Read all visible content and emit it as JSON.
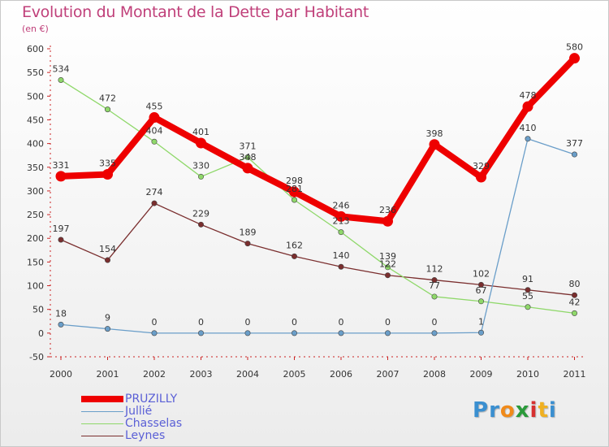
{
  "title": "Evolution du Montant de la Dette par Habitant",
  "subtitle": "(en €)",
  "chart_data": {
    "type": "line",
    "title": "Evolution du Montant de la Dette par Habitant",
    "subtitle": "(en €)",
    "xlabel": "",
    "ylabel": "",
    "categories": [
      "2000",
      "2001",
      "2002",
      "2003",
      "2004",
      "2005",
      "2006",
      "2007",
      "2008",
      "2009",
      "2010",
      "2011"
    ],
    "yticks": [
      -50,
      0,
      50,
      100,
      150,
      200,
      250,
      300,
      350,
      400,
      450,
      500,
      550,
      600
    ],
    "ylim": [
      -50,
      600
    ],
    "grid": false,
    "legend_position": "bottom-left",
    "series": [
      {
        "name": "PRUZILLY",
        "color": "#ee0000",
        "width": 8,
        "values": [
          331,
          335,
          455,
          401,
          348,
          298,
          246,
          236,
          398,
          329,
          478,
          580
        ]
      },
      {
        "name": "Jullié",
        "color": "#6a9ec9",
        "width": 1.3,
        "values": [
          18,
          9,
          0,
          0,
          0,
          0,
          0,
          0,
          0,
          1,
          410,
          377
        ]
      },
      {
        "name": "Chasselas",
        "color": "#8fd86a",
        "width": 1.3,
        "values": [
          534,
          472,
          404,
          330,
          371,
          281,
          213,
          139,
          77,
          67,
          55,
          42
        ]
      },
      {
        "name": "Leynes",
        "color": "#7a2e2e",
        "width": 1.3,
        "values": [
          197,
          154,
          274,
          229,
          189,
          162,
          140,
          122,
          112,
          102,
          91,
          80
        ]
      }
    ]
  },
  "legend": {
    "items": [
      {
        "label": "PRUZILLY",
        "color": "#ee0000"
      },
      {
        "label": "Jullié",
        "color": "#6a9ec9"
      },
      {
        "label": "Chasselas",
        "color": "#8fd86a"
      },
      {
        "label": "Leynes",
        "color": "#7a2e2e"
      }
    ]
  },
  "logo": {
    "letters": [
      "P",
      "r",
      "o",
      "x",
      "i",
      "t",
      "i"
    ],
    "colors": [
      "#3a8fd0",
      "#3a8fd0",
      "#f08a1a",
      "#2a9a3a",
      "#d63030",
      "#f0b020",
      "#3a8fd0"
    ]
  }
}
